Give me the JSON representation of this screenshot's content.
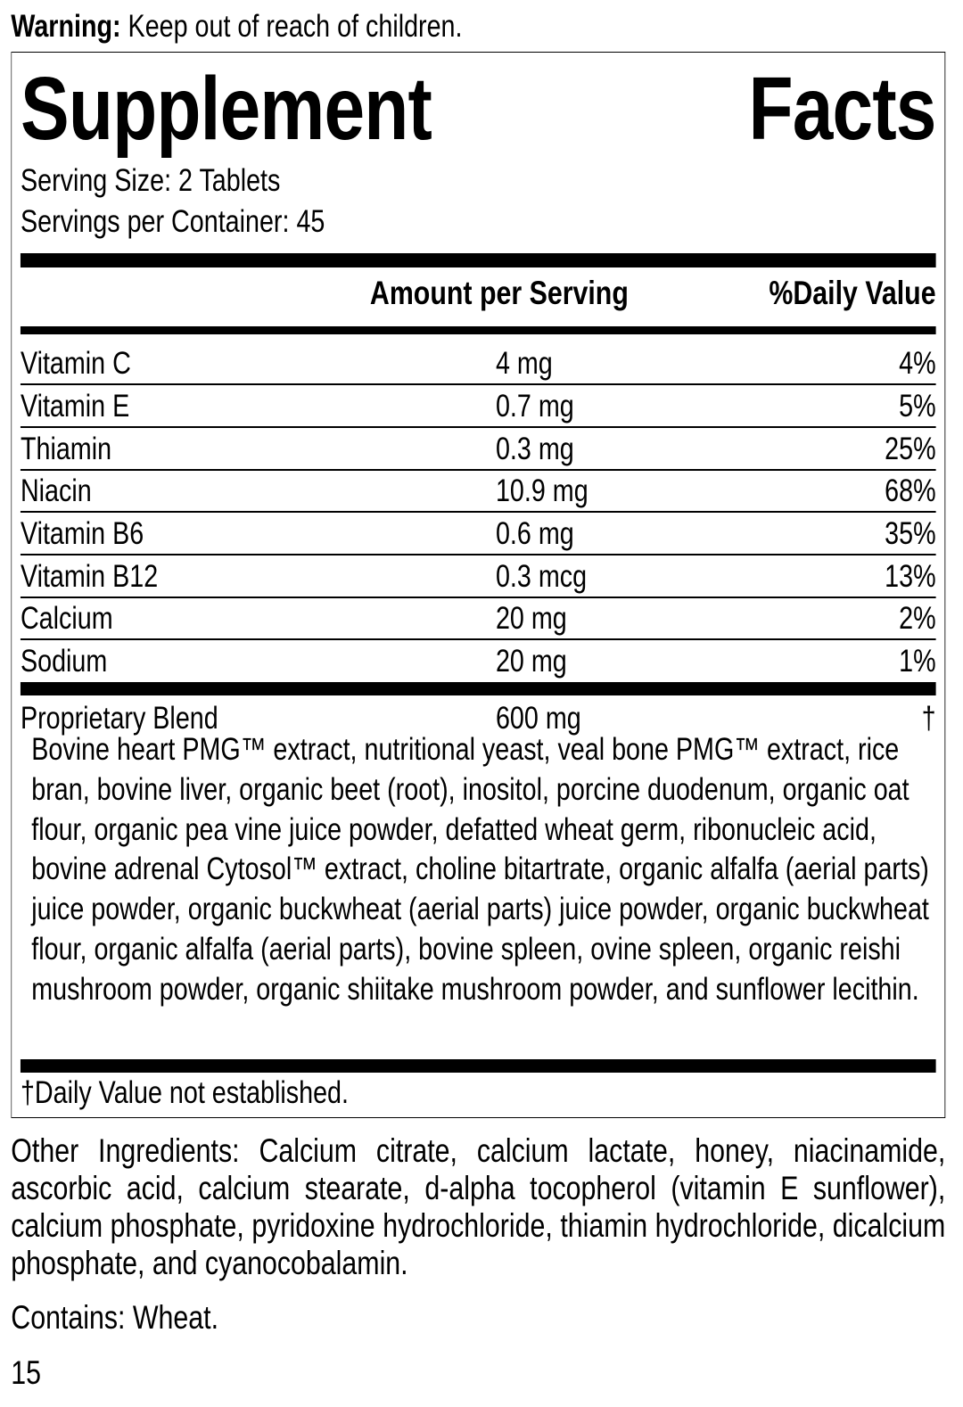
{
  "warning": {
    "label": "Warning:",
    "text": " Keep out of reach of children."
  },
  "title": {
    "word1": "Supplement",
    "word2": "Facts"
  },
  "serving_size": "Serving Size: 2 Tablets",
  "servings_per_container": "Servings per Container: 45",
  "headers": {
    "amount": "Amount per Serving",
    "dv": "%Daily Value"
  },
  "rows": [
    {
      "name": "Vitamin C",
      "amount": "4 mg",
      "dv": "4%"
    },
    {
      "name": "Vitamin E",
      "amount": "0.7 mg",
      "dv": "5%"
    },
    {
      "name": "Thiamin",
      "amount": "0.3 mg",
      "dv": "25%"
    },
    {
      "name": "Niacin",
      "amount": "10.9 mg",
      "dv": "68%"
    },
    {
      "name": "Vitamin B6",
      "amount": "0.6 mg",
      "dv": "35%"
    },
    {
      "name": "Vitamin B12",
      "amount": "0.3 mcg",
      "dv": "13%"
    },
    {
      "name": "Calcium",
      "amount": "20 mg",
      "dv": "2%"
    },
    {
      "name": "Sodium",
      "amount": "20 mg",
      "dv": "1%"
    }
  ],
  "blend": {
    "name": "Proprietary Blend",
    "amount": "600 mg",
    "dv": "†",
    "ingredients": "Bovine heart PMG™ extract, nutritional yeast, veal bone PMG™ extract, rice bran, bovine liver, organic beet (root), inositol, porcine duodenum, organic oat flour, organic pea vine juice powder, defatted wheat germ, ribonucleic acid, bovine adrenal Cytosol™ extract, choline bitartrate, organic alfalfa (aerial parts) juice powder, organic buckwheat (aerial parts) juice powder, organic buckwheat flour, organic alfalfa (aerial parts), bovine spleen, ovine spleen, organic reishi mushroom powder, organic shiitake mushroom powder, and sunflower lecithin."
  },
  "footnote": "†Daily Value not established.",
  "other_ingredients": "Other Ingredients: Calcium citrate, calcium lactate, honey, niacinamide, ascorbic acid, calcium stearate, d-alpha tocopherol (vitamin E sunflower), calcium phosphate, pyridoxine hydrochloride, thiamin hydrochloride, dicalcium phosphate, and cyanocobalamin.",
  "contains": "Contains: Wheat.",
  "page_number": "15"
}
